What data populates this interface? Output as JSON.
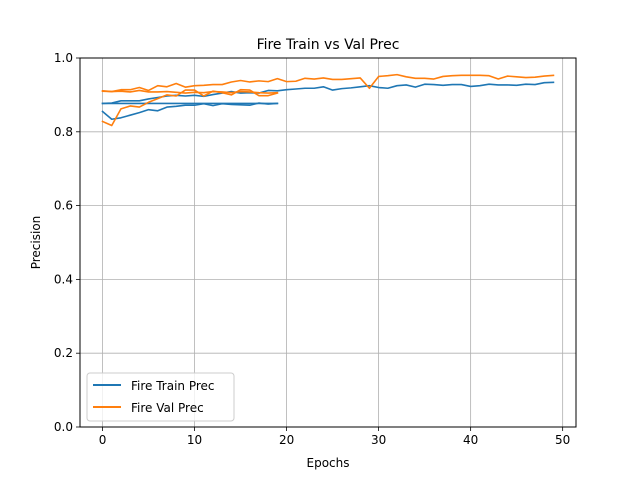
{
  "chart_data": {
    "type": "line",
    "title": "Fire Train vs Val Prec",
    "xlabel": "Epochs",
    "ylabel": "Precision",
    "xlim": [
      -2.45,
      51.45
    ],
    "ylim": [
      0.0,
      1.0
    ],
    "xticks": [
      0,
      10,
      20,
      30,
      40,
      50
    ],
    "yticks": [
      0.0,
      0.2,
      0.4,
      0.6,
      0.8,
      1.0
    ],
    "xtick_labels": [
      "0",
      "10",
      "20",
      "30",
      "40",
      "50"
    ],
    "ytick_labels": [
      "0.0",
      "0.2",
      "0.4",
      "0.6",
      "0.8",
      "1.0"
    ],
    "grid": true,
    "legend_position": "lower-left",
    "series": [
      {
        "name": "Fire Train Prec",
        "color": "#1f77b4",
        "runs": [
          {
            "x": [
              0,
              1,
              2,
              3,
              4,
              5,
              6,
              7,
              8,
              9,
              10,
              11,
              12,
              13,
              14,
              15,
              16,
              17,
              18,
              19
            ],
            "y": [
              0.855,
              0.834,
              0.838,
              0.845,
              0.852,
              0.86,
              0.857,
              0.867,
              0.869,
              0.872,
              0.872,
              0.876,
              0.871,
              0.876,
              0.874,
              0.873,
              0.872,
              0.878,
              0.875,
              0.877
            ]
          },
          {
            "x": [
              0,
              1,
              2,
              3,
              4,
              5,
              6,
              7,
              8,
              9,
              10,
              11,
              12,
              13,
              14,
              15,
              16,
              17,
              18,
              19,
              20,
              21,
              22,
              23,
              24,
              25,
              26,
              27,
              28,
              29,
              30,
              31,
              32,
              33,
              34,
              35,
              36,
              37,
              38,
              39,
              40,
              41,
              42,
              43,
              44,
              45,
              46,
              47,
              48,
              49
            ],
            "y": [
              0.877,
              0.878,
              0.884,
              0.884,
              0.884,
              0.889,
              0.893,
              0.897,
              0.899,
              0.897,
              0.899,
              0.896,
              0.901,
              0.905,
              0.909,
              0.905,
              0.906,
              0.905,
              0.912,
              0.911,
              0.914,
              0.916,
              0.918,
              0.918,
              0.922,
              0.913,
              0.917,
              0.919,
              0.922,
              0.925,
              0.92,
              0.918,
              0.925,
              0.927,
              0.921,
              0.929,
              0.928,
              0.926,
              0.928,
              0.928,
              0.923,
              0.925,
              0.929,
              0.927,
              0.927,
              0.926,
              0.929,
              0.928,
              0.933,
              0.934
            ]
          },
          {
            "x": [
              0,
              19
            ],
            "y": [
              0.877,
              0.877
            ]
          }
        ]
      },
      {
        "name": "Fire Val Prec",
        "color": "#ff7f0e",
        "runs": [
          {
            "x": [
              0,
              1,
              2,
              3,
              4,
              5,
              6,
              7,
              8,
              9,
              10,
              11,
              12,
              13,
              14,
              15,
              16,
              17,
              18,
              19
            ],
            "y": [
              0.828,
              0.817,
              0.862,
              0.87,
              0.867,
              0.88,
              0.89,
              0.9,
              0.897,
              0.913,
              0.913,
              0.897,
              0.91,
              0.906,
              0.9,
              0.914,
              0.913,
              0.898,
              0.898,
              0.905
            ]
          },
          {
            "x": [
              0,
              1,
              2,
              3,
              4,
              5,
              6,
              7,
              8,
              9,
              10,
              11,
              12,
              13,
              14,
              15,
              16,
              17,
              18,
              19,
              20,
              21,
              22,
              23,
              24,
              25,
              26,
              27,
              28,
              29,
              30,
              31,
              32,
              33,
              34,
              35,
              36,
              37,
              38,
              39,
              40,
              41,
              42,
              43,
              44,
              45,
              46,
              47,
              48,
              49
            ],
            "y": [
              0.911,
              0.909,
              0.914,
              0.914,
              0.92,
              0.912,
              0.925,
              0.922,
              0.931,
              0.921,
              0.925,
              0.926,
              0.928,
              0.928,
              0.935,
              0.939,
              0.935,
              0.938,
              0.936,
              0.944,
              0.936,
              0.937,
              0.945,
              0.943,
              0.946,
              0.942,
              0.942,
              0.944,
              0.946,
              0.918,
              0.95,
              0.952,
              0.955,
              0.949,
              0.945,
              0.945,
              0.943,
              0.95,
              0.952,
              0.953,
              0.953,
              0.953,
              0.952,
              0.943,
              0.951,
              0.949,
              0.947,
              0.948,
              0.951,
              0.953
            ]
          },
          {
            "x": [
              0,
              1,
              2,
              3,
              4,
              5,
              6,
              7,
              8,
              9,
              10,
              11,
              12,
              13,
              14,
              15,
              16,
              17,
              18,
              19
            ],
            "y": [
              0.91,
              0.909,
              0.91,
              0.908,
              0.912,
              0.908,
              0.908,
              0.909,
              0.907,
              0.905,
              0.907,
              0.906,
              0.909,
              0.908,
              0.906,
              0.909,
              0.908,
              0.906,
              0.905,
              0.906
            ]
          }
        ]
      }
    ]
  }
}
